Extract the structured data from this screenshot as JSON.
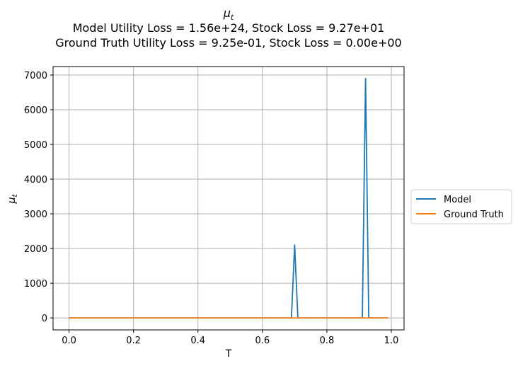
{
  "chart_data": {
    "type": "line",
    "title_symbol": "μ",
    "title_symbol_sub": "t",
    "title_line2": "Model Utility Loss = 1.56e+24, Stock Loss = 9.27e+01",
    "title_line3": "Ground Truth Utility Loss = 9.25e-01, Stock Loss = 0.00e+00",
    "xlabel": "T",
    "ylabel_symbol": "μ",
    "ylabel_sub": "t",
    "xlim": [
      -0.0495,
      1.0395
    ],
    "ylim": [
      -345,
      7245
    ],
    "xticks": [
      0.0,
      0.2,
      0.4,
      0.6,
      0.8,
      1.0
    ],
    "xtick_labels": [
      "0.0",
      "0.2",
      "0.4",
      "0.6",
      "0.8",
      "1.0"
    ],
    "yticks": [
      0,
      1000,
      2000,
      3000,
      4000,
      5000,
      6000,
      7000
    ],
    "ytick_labels": [
      "0",
      "1000",
      "2000",
      "3000",
      "4000",
      "5000",
      "6000",
      "7000"
    ],
    "grid": true,
    "legend_placement": "center-right-outside",
    "series": [
      {
        "name": "Model",
        "color": "#1f77b4",
        "x": [
          0.0,
          0.69,
          0.7,
          0.71,
          0.91,
          0.92,
          0.93,
          0.99
        ],
        "y": [
          0,
          0,
          2100,
          0,
          0,
          6900,
          0,
          0
        ]
      },
      {
        "name": "Ground Truth",
        "color": "#ff7f0e",
        "x": [
          0.0,
          0.99
        ],
        "y": [
          0,
          0
        ]
      }
    ]
  }
}
